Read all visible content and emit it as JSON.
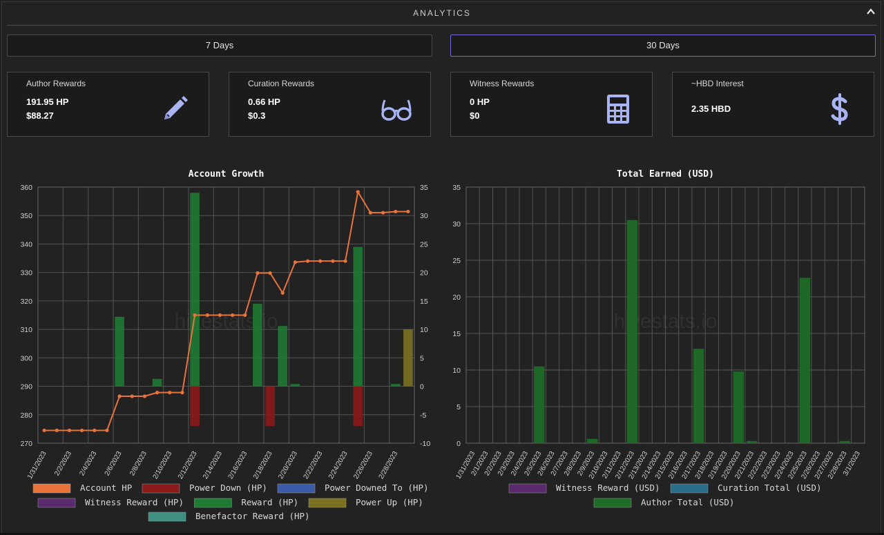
{
  "header": {
    "title": "ANALYTICS"
  },
  "periods": [
    {
      "label": "7 Days",
      "active": false
    },
    {
      "label": "30 Days",
      "active": true
    }
  ],
  "cards": [
    {
      "title": "Author Rewards",
      "line1": "191.95 HP",
      "line2": "$88.27",
      "icon": "pencil-icon"
    },
    {
      "title": "Curation Rewards",
      "line1": "0.66 HP",
      "line2": "$0.3",
      "icon": "glasses-icon"
    },
    {
      "title": "Witness Rewards",
      "line1": "0 HP",
      "line2": "$0",
      "icon": "calculator-icon"
    },
    {
      "title": "~HBD Interest",
      "line1": "2.35 HBD",
      "line2": "",
      "icon": "dollar-icon"
    }
  ],
  "colors": {
    "accent": "#a9b4f5",
    "active_border": "#6f6ad8"
  },
  "chart_data": [
    {
      "type": "bar",
      "title": "Account Growth",
      "watermark": "hivestats.io",
      "categories": [
        "1/31/2023",
        "2/1/2023",
        "2/2/2023",
        "2/3/2023",
        "2/4/2023",
        "2/5/2023",
        "2/6/2023",
        "2/7/2023",
        "2/8/2023",
        "2/9/2023",
        "2/10/2023",
        "2/11/2023",
        "2/12/2023",
        "2/13/2023",
        "2/14/2023",
        "2/15/2023",
        "2/16/2023",
        "2/17/2023",
        "2/18/2023",
        "2/19/2023",
        "2/20/2023",
        "2/21/2023",
        "2/22/2023",
        "2/23/2023",
        "2/24/2023",
        "2/25/2023",
        "2/26/2023",
        "2/27/2023",
        "2/28/2023",
        "3/1/2023"
      ],
      "tick_labels": [
        "1/31/2023",
        "2/2/2023",
        "2/4/2023",
        "2/6/2023",
        "2/8/2023",
        "2/10/2023",
        "2/12/2023",
        "2/14/2023",
        "2/16/2023",
        "2/18/2023",
        "2/20/2023",
        "2/22/2023",
        "2/24/2023",
        "2/26/2023",
        "2/28/2023"
      ],
      "ylim_left": [
        270,
        360
      ],
      "yticks_left": [
        270,
        280,
        290,
        300,
        310,
        320,
        330,
        340,
        350,
        360
      ],
      "ylim_right": [
        -10,
        35
      ],
      "yticks_right": [
        -10,
        -5,
        0,
        5,
        10,
        15,
        20,
        25,
        30,
        35
      ],
      "grid": true,
      "legend_position": "bottom",
      "series": [
        {
          "name": "Account HP",
          "kind": "line",
          "axis": "left",
          "color": "#e8743b",
          "values": [
            274.5,
            274.5,
            274.5,
            274.5,
            274.5,
            274.5,
            286.5,
            286.5,
            286.5,
            287.8,
            287.8,
            287.8,
            315,
            315,
            315,
            315,
            315,
            329.8,
            329.8,
            322.8,
            333.6,
            334,
            334,
            334,
            334,
            358.3,
            351,
            351,
            351.4,
            351.4
          ]
        },
        {
          "name": "Power Down (HP)",
          "kind": "bar",
          "axis": "right",
          "color": "#8b1a1a",
          "values": [
            0,
            0,
            0,
            0,
            0,
            0,
            0,
            0,
            0,
            0,
            0,
            0,
            -7,
            0,
            0,
            0,
            0,
            0,
            -7,
            0,
            0,
            0,
            0,
            0,
            0,
            -7,
            0,
            0,
            0,
            0
          ]
        },
        {
          "name": "Power Downed To (HP)",
          "kind": "bar",
          "axis": "right",
          "color": "#3b5ba8",
          "values": [
            0,
            0,
            0,
            0,
            0,
            0,
            0,
            0,
            0,
            0,
            0,
            0,
            0,
            0,
            0,
            0,
            0,
            0,
            0,
            0,
            0,
            0,
            0,
            0,
            0,
            0,
            0,
            0,
            0,
            0
          ]
        },
        {
          "name": "Witness Reward (HP)",
          "kind": "bar",
          "axis": "right",
          "color": "#5a2a6e",
          "values": [
            0,
            0,
            0,
            0,
            0,
            0,
            0,
            0,
            0,
            0,
            0,
            0,
            0,
            0,
            0,
            0,
            0,
            0,
            0,
            0,
            0,
            0,
            0,
            0,
            0,
            0,
            0,
            0,
            0,
            0
          ]
        },
        {
          "name": "Reward (HP)",
          "kind": "bar",
          "axis": "right",
          "color": "#1f7a33",
          "values": [
            0,
            0,
            0,
            0,
            0,
            0,
            12.2,
            0,
            0,
            1.3,
            0,
            0,
            34,
            0,
            0,
            0,
            0,
            14.5,
            0,
            10.6,
            0.4,
            0,
            0,
            0,
            0,
            24.5,
            0,
            0,
            0.4,
            0
          ]
        },
        {
          "name": "Power Up (HP)",
          "kind": "bar",
          "axis": "right",
          "color": "#7a7220",
          "values": [
            0,
            0,
            0,
            0,
            0,
            0,
            0,
            0,
            0,
            0,
            0,
            0,
            0,
            0,
            0,
            0,
            0,
            0,
            0,
            0,
            0,
            0,
            0,
            0,
            0,
            0,
            0,
            0,
            0,
            10
          ]
        },
        {
          "name": "Benefactor Reward (HP)",
          "kind": "bar",
          "axis": "right",
          "color": "#3f8f82",
          "values": [
            0,
            0,
            0,
            0,
            0,
            0,
            0,
            0,
            0,
            0,
            0,
            0,
            0,
            0,
            0,
            0,
            0,
            0,
            0,
            0,
            0,
            0,
            0,
            0,
            0,
            0,
            0,
            0,
            0,
            0
          ]
        }
      ]
    },
    {
      "type": "bar",
      "title": "Total Earned (USD)",
      "watermark": "hivestats.io",
      "categories": [
        "1/31/2023",
        "2/1/2023",
        "2/2/2023",
        "2/3/2023",
        "2/4/2023",
        "2/5/2023",
        "2/6/2023",
        "2/7/2023",
        "2/8/2023",
        "2/9/2023",
        "2/10/2023",
        "2/11/2023",
        "2/12/2023",
        "2/13/2023",
        "2/14/2023",
        "2/15/2023",
        "2/16/2023",
        "2/17/2023",
        "2/18/2023",
        "2/19/2023",
        "2/20/2023",
        "2/21/2023",
        "2/22/2023",
        "2/23/2023",
        "2/24/2023",
        "2/25/2023",
        "2/26/2023",
        "2/27/2023",
        "2/28/2023",
        "3/1/2023"
      ],
      "ylim": [
        0,
        35
      ],
      "yticks": [
        0,
        5,
        10,
        15,
        20,
        25,
        30,
        35
      ],
      "grid": true,
      "legend_position": "bottom",
      "series": [
        {
          "name": "Witness Reward (USD)",
          "color": "#5a2a6e",
          "values": [
            0,
            0,
            0,
            0,
            0,
            0,
            0,
            0,
            0,
            0,
            0,
            0,
            0,
            0,
            0,
            0,
            0,
            0,
            0,
            0,
            0,
            0,
            0,
            0,
            0,
            0,
            0,
            0,
            0,
            0
          ]
        },
        {
          "name": "Curation Total (USD)",
          "color": "#2a6f8a",
          "values": [
            0,
            0,
            0,
            0,
            0,
            0,
            0,
            0,
            0,
            0,
            0,
            0,
            0,
            0,
            0,
            0,
            0,
            0,
            0,
            0,
            0,
            0,
            0,
            0,
            0,
            0,
            0,
            0,
            0,
            0
          ]
        },
        {
          "name": "Author Total (USD)",
          "color": "#1f6b28",
          "values": [
            0,
            0,
            0,
            0,
            0,
            10.5,
            0,
            0,
            0,
            0.6,
            0,
            0,
            30.5,
            0,
            0,
            0,
            0,
            12.9,
            0,
            0,
            9.8,
            0.3,
            0,
            0,
            0,
            22.6,
            0,
            0,
            0.3,
            0
          ]
        }
      ]
    }
  ]
}
